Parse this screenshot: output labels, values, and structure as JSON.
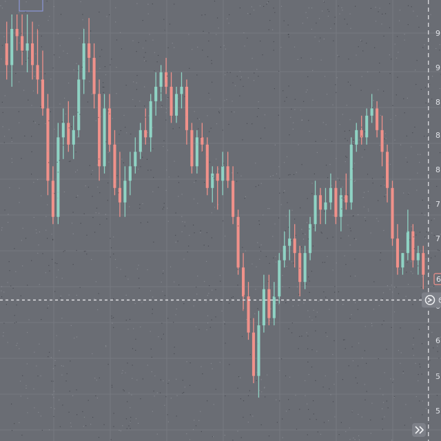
{
  "colors": {
    "background": "#6a6d74",
    "grid": "#767980",
    "up_candle": "#8fd3c4",
    "down_candle": "#f0918a",
    "crosshair": "#e8e9ec",
    "axis_text": "#e3e5ea"
  },
  "crosshair": {
    "style": "dashed",
    "horizontal_price": 59.5,
    "vertical_candle_index": 82
  },
  "axis": {
    "y_ticks": [
      "9",
      "9",
      "8",
      "8",
      "8",
      "7",
      "7",
      "6",
      "6",
      "5",
      "5"
    ],
    "price_badge_label": "6",
    "crosshair_label": "6"
  },
  "icons": {
    "crosshair_marker": "arrow-circle-icon",
    "corner_button": "double-chevron-icon"
  },
  "chart_data": {
    "type": "candlestick",
    "title": "",
    "xlabel": "",
    "ylabel": "",
    "ylim": [
      40,
      101
    ],
    "grid": true,
    "ohlc": [
      [
        95,
        98,
        90,
        92
      ],
      [
        92,
        99,
        89,
        97
      ],
      [
        97,
        99,
        94,
        96
      ],
      [
        96,
        99,
        92,
        94
      ],
      [
        94,
        99,
        91,
        95
      ],
      [
        95,
        98,
        90,
        92
      ],
      [
        92,
        97,
        88,
        90
      ],
      [
        90,
        94,
        85,
        86
      ],
      [
        86,
        88,
        74,
        76
      ],
      [
        76,
        78,
        70,
        71
      ],
      [
        71,
        84,
        70,
        82
      ],
      [
        82,
        86,
        79,
        84
      ],
      [
        84,
        87,
        80,
        81
      ],
      [
        81,
        85,
        79,
        83
      ],
      [
        83,
        92,
        82,
        90
      ],
      [
        90,
        97,
        88,
        95
      ],
      [
        95,
        98.5,
        91,
        93
      ],
      [
        93,
        95,
        86,
        88
      ],
      [
        88,
        90,
        76,
        78
      ],
      [
        78,
        88,
        77,
        86
      ],
      [
        86,
        88,
        80,
        81
      ],
      [
        81,
        83,
        74,
        75
      ],
      [
        75,
        80,
        71,
        73
      ],
      [
        73,
        78,
        71,
        76
      ],
      [
        76,
        80,
        74,
        78
      ],
      [
        78,
        82,
        77,
        80
      ],
      [
        80,
        84,
        79,
        83
      ],
      [
        83,
        86,
        81,
        82
      ],
      [
        82,
        88,
        80,
        87
      ],
      [
        87,
        91,
        85,
        89
      ],
      [
        89,
        92,
        87,
        91
      ],
      [
        91,
        93,
        88,
        89
      ],
      [
        89,
        91,
        84,
        85
      ],
      [
        85,
        89,
        84,
        88
      ],
      [
        88,
        91,
        86,
        89
      ],
      [
        89,
        90,
        81,
        83
      ],
      [
        83,
        84,
        77,
        78
      ],
      [
        78,
        83,
        77,
        82
      ],
      [
        82,
        84,
        80,
        81
      ],
      [
        81,
        82,
        74,
        75
      ],
      [
        75,
        78,
        73,
        77
      ],
      [
        77,
        78,
        72,
        76
      ],
      [
        76,
        80,
        74,
        78
      ],
      [
        78,
        80,
        75,
        76
      ],
      [
        76,
        78,
        70,
        71
      ],
      [
        71,
        72,
        63,
        64
      ],
      [
        64,
        66,
        58,
        60
      ],
      [
        60,
        62,
        54,
        55
      ],
      [
        55,
        57,
        48,
        49
      ],
      [
        49,
        58,
        46,
        56
      ],
      [
        56,
        63,
        55,
        61
      ],
      [
        61,
        63,
        56,
        57
      ],
      [
        57,
        62,
        56,
        60
      ],
      [
        60,
        66,
        59,
        65
      ],
      [
        65,
        69,
        64,
        67
      ],
      [
        67,
        72,
        65,
        68
      ],
      [
        68,
        70,
        64,
        66
      ],
      [
        66,
        67,
        60,
        62
      ],
      [
        62,
        67,
        61,
        66
      ],
      [
        66,
        71,
        65,
        70
      ],
      [
        70,
        76,
        69,
        74
      ],
      [
        74,
        75,
        70,
        72
      ],
      [
        72,
        75,
        70,
        73
      ],
      [
        73,
        77,
        72,
        75
      ],
      [
        75,
        76,
        70,
        71
      ],
      [
        71,
        75,
        69,
        74
      ],
      [
        74,
        77,
        72,
        73
      ],
      [
        73,
        82,
        72,
        81
      ],
      [
        81,
        84,
        80,
        83
      ],
      [
        83,
        85,
        81,
        82
      ],
      [
        82,
        86,
        81,
        85
      ],
      [
        85,
        88,
        84,
        86
      ],
      [
        86,
        87,
        82,
        83
      ],
      [
        83,
        85,
        78,
        80
      ],
      [
        80,
        81,
        73,
        75
      ],
      [
        75,
        76,
        67,
        68
      ],
      [
        68,
        70,
        63,
        64
      ],
      [
        64,
        66,
        63,
        66
      ],
      [
        66,
        72,
        65,
        69
      ],
      [
        69,
        70,
        64,
        65
      ],
      [
        65,
        67,
        63,
        66
      ],
      [
        66,
        67,
        61,
        63
      ]
    ]
  }
}
